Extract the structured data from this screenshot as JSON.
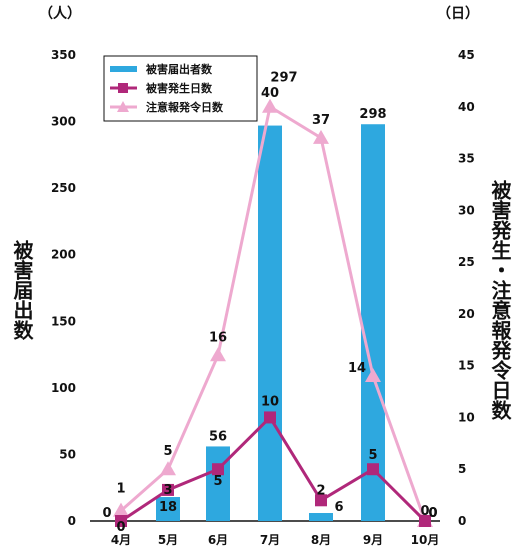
{
  "chart_data": {
    "type": "bar+line",
    "categories": [
      "4月",
      "5月",
      "6月",
      "7月",
      "8月",
      "9月",
      "10月"
    ],
    "left_axis": {
      "unit": "（人）",
      "title": "被害届出数",
      "ylim": [
        0,
        350
      ],
      "ticks": [
        "0",
        "50",
        "100",
        "150",
        "200",
        "250",
        "300",
        "350"
      ]
    },
    "right_axis": {
      "unit": "（日）",
      "title": "被害発生・注意報発令日数",
      "ylim": [
        0,
        45
      ],
      "ticks": [
        "0",
        "5",
        "10",
        "15",
        "20",
        "25",
        "30",
        "35",
        "40",
        "45"
      ]
    },
    "series": [
      {
        "name": "被害届出者数",
        "kind": "bar",
        "axis": "left",
        "color": "#2ea8df",
        "values": [
          0,
          18,
          56,
          297,
          6,
          298,
          0
        ],
        "labels": [
          "0",
          "18",
          "56",
          "297",
          "6",
          "298",
          "0"
        ]
      },
      {
        "name": "被害発生日数",
        "kind": "line",
        "axis": "right",
        "color": "#b0287a",
        "marker": "square",
        "values": [
          0,
          3,
          5,
          10,
          2,
          5,
          0
        ],
        "labels": [
          "0",
          "3",
          "5",
          "10",
          "2",
          "5",
          "0"
        ]
      },
      {
        "name": "注意報発令日数",
        "kind": "line",
        "axis": "right",
        "color": "#eea9cf",
        "marker": "triangle",
        "values": [
          1,
          5,
          16,
          40,
          37,
          14,
          0
        ],
        "labels": [
          "1",
          "5",
          "16",
          "40",
          "37",
          "14",
          "0"
        ]
      }
    ],
    "legend_position": "top-left",
    "grid": false
  }
}
